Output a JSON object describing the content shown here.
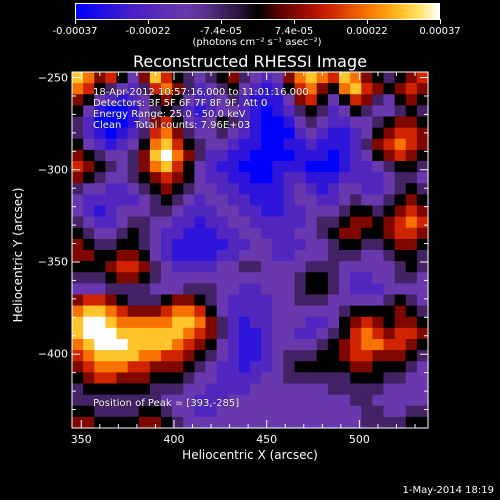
{
  "chart_data": {
    "type": "heatmap",
    "title": "Reconstructed RHESSI Image",
    "xlabel": "Heliocentric X (arcsec)",
    "ylabel": "Heliocentric Y (arcsec)",
    "xlim": [
      345,
      537
    ],
    "ylim": [
      -440,
      -247
    ],
    "x_ticks": [
      350,
      400,
      450,
      500
    ],
    "y_ticks": [
      -250,
      -300,
      -350,
      -400
    ],
    "colorbar": {
      "ticks": [
        "-0.00037",
        "-0.00022",
        "-7.4e-05",
        "7.4e-05",
        "0.00022",
        "0.00037"
      ],
      "unit": "(photons cm⁻² s⁻¹ asec⁻²)",
      "range": [
        -0.00037,
        0.00037
      ]
    },
    "grid": [
      [
        0.9,
        0.8,
        0.6,
        0.7,
        0.5,
        0.3,
        0.6,
        0.9,
        0.7,
        0.5,
        0.4,
        0.3,
        0.4,
        0.5,
        0.6,
        0.4,
        0.3,
        0.2,
        0.3,
        0.6,
        0.8,
        0.9,
        0.8,
        0.7,
        0.9,
        0.8,
        0.6,
        0.5,
        0.4,
        0.5,
        0.6,
        0.7
      ],
      [
        0.8,
        0.7,
        0.5,
        0.4,
        0.3,
        0.2,
        0.4,
        0.7,
        0.8,
        0.6,
        0.4,
        0.2,
        0.3,
        0.4,
        0.5,
        0.3,
        0.2,
        0.1,
        0.2,
        0.5,
        0.7,
        0.8,
        0.6,
        0.5,
        0.8,
        0.9,
        0.7,
        0.6,
        0.5,
        0.6,
        0.7,
        0.6
      ],
      [
        0.6,
        0.5,
        0.3,
        0.2,
        0.1,
        0.2,
        0.3,
        0.5,
        0.6,
        0.5,
        0.3,
        0.2,
        0.2,
        0.3,
        0.4,
        0.2,
        0.1,
        0.1,
        0.1,
        0.3,
        0.6,
        0.7,
        0.5,
        0.3,
        0.5,
        0.7,
        0.6,
        0.4,
        0.3,
        0.5,
        0.6,
        0.5
      ],
      [
        0.5,
        0.3,
        0.1,
        0.0,
        0.0,
        0.1,
        0.3,
        0.4,
        0.5,
        0.4,
        0.2,
        0.1,
        0.2,
        0.3,
        0.3,
        0.2,
        0.1,
        0.0,
        0.1,
        0.2,
        0.4,
        0.5,
        0.4,
        0.2,
        0.3,
        0.5,
        0.4,
        0.3,
        0.3,
        0.4,
        0.5,
        0.4
      ],
      [
        0.4,
        0.2,
        0.0,
        0.0,
        0.0,
        0.1,
        0.3,
        0.6,
        0.7,
        0.5,
        0.3,
        0.2,
        0.3,
        0.5,
        0.4,
        0.2,
        0.1,
        0.0,
        0.0,
        0.1,
        0.3,
        0.4,
        0.3,
        0.2,
        0.2,
        0.3,
        0.3,
        0.4,
        0.5,
        0.6,
        0.6,
        0.5
      ],
      [
        0.4,
        0.2,
        0.1,
        0.0,
        0.1,
        0.2,
        0.4,
        0.7,
        0.8,
        0.6,
        0.4,
        0.3,
        0.3,
        0.4,
        0.3,
        0.2,
        0.1,
        0.0,
        0.0,
        0.0,
        0.2,
        0.3,
        0.2,
        0.1,
        0.1,
        0.2,
        0.3,
        0.5,
        0.6,
        0.7,
        0.7,
        0.6
      ],
      [
        0.5,
        0.3,
        0.2,
        0.1,
        0.2,
        0.3,
        0.5,
        0.8,
        0.9,
        0.7,
        0.5,
        0.4,
        0.3,
        0.3,
        0.2,
        0.1,
        0.1,
        0.0,
        0.0,
        0.1,
        0.1,
        0.2,
        0.1,
        0.1,
        0.1,
        0.2,
        0.4,
        0.6,
        0.7,
        0.8,
        0.7,
        0.6
      ],
      [
        0.6,
        0.5,
        0.4,
        0.3,
        0.3,
        0.4,
        0.6,
        0.9,
        1.0,
        0.8,
        0.6,
        0.4,
        0.2,
        0.2,
        0.1,
        0.1,
        0.0,
        0.0,
        0.0,
        0.0,
        0.1,
        0.1,
        0.1,
        0.0,
        0.1,
        0.2,
        0.3,
        0.5,
        0.6,
        0.7,
        0.6,
        0.5
      ],
      [
        0.7,
        0.6,
        0.5,
        0.4,
        0.3,
        0.4,
        0.6,
        0.8,
        0.9,
        0.7,
        0.5,
        0.3,
        0.2,
        0.1,
        0.1,
        0.0,
        0.0,
        0.0,
        0.1,
        0.1,
        0.1,
        0.0,
        0.0,
        0.0,
        0.1,
        0.2,
        0.2,
        0.3,
        0.4,
        0.5,
        0.5,
        0.4
      ],
      [
        0.6,
        0.5,
        0.4,
        0.3,
        0.3,
        0.4,
        0.5,
        0.6,
        0.7,
        0.6,
        0.5,
        0.3,
        0.2,
        0.2,
        0.1,
        0.1,
        0.0,
        0.0,
        0.1,
        0.2,
        0.2,
        0.1,
        0.1,
        0.1,
        0.2,
        0.2,
        0.2,
        0.2,
        0.3,
        0.4,
        0.4,
        0.3
      ],
      [
        0.4,
        0.3,
        0.3,
        0.2,
        0.2,
        0.3,
        0.4,
        0.5,
        0.6,
        0.5,
        0.4,
        0.3,
        0.3,
        0.2,
        0.2,
        0.1,
        0.1,
        0.1,
        0.1,
        0.2,
        0.3,
        0.2,
        0.1,
        0.2,
        0.3,
        0.3,
        0.2,
        0.2,
        0.3,
        0.4,
        0.5,
        0.4
      ],
      [
        0.3,
        0.2,
        0.2,
        0.2,
        0.2,
        0.2,
        0.3,
        0.4,
        0.5,
        0.4,
        0.3,
        0.2,
        0.3,
        0.3,
        0.2,
        0.2,
        0.1,
        0.1,
        0.1,
        0.2,
        0.3,
        0.3,
        0.2,
        0.2,
        0.3,
        0.4,
        0.3,
        0.3,
        0.4,
        0.5,
        0.6,
        0.5
      ],
      [
        0.3,
        0.2,
        0.1,
        0.2,
        0.3,
        0.3,
        0.3,
        0.4,
        0.4,
        0.3,
        0.2,
        0.2,
        0.2,
        0.3,
        0.3,
        0.2,
        0.2,
        0.1,
        0.1,
        0.2,
        0.2,
        0.3,
        0.3,
        0.3,
        0.4,
        0.5,
        0.5,
        0.4,
        0.5,
        0.6,
        0.7,
        0.6
      ],
      [
        0.4,
        0.3,
        0.2,
        0.2,
        0.3,
        0.4,
        0.4,
        0.3,
        0.3,
        0.2,
        0.2,
        0.1,
        0.2,
        0.2,
        0.3,
        0.3,
        0.2,
        0.2,
        0.2,
        0.2,
        0.2,
        0.3,
        0.4,
        0.4,
        0.5,
        0.6,
        0.6,
        0.5,
        0.6,
        0.7,
        0.8,
        0.7
      ],
      [
        0.5,
        0.4,
        0.3,
        0.3,
        0.4,
        0.5,
        0.4,
        0.3,
        0.2,
        0.2,
        0.1,
        0.1,
        0.1,
        0.2,
        0.2,
        0.3,
        0.3,
        0.2,
        0.2,
        0.2,
        0.3,
        0.3,
        0.4,
        0.5,
        0.6,
        0.6,
        0.5,
        0.5,
        0.6,
        0.7,
        0.7,
        0.6
      ],
      [
        0.6,
        0.5,
        0.4,
        0.4,
        0.5,
        0.5,
        0.4,
        0.3,
        0.2,
        0.1,
        0.1,
        0.1,
        0.1,
        0.1,
        0.2,
        0.2,
        0.3,
        0.3,
        0.2,
        0.2,
        0.2,
        0.3,
        0.3,
        0.4,
        0.5,
        0.5,
        0.4,
        0.4,
        0.5,
        0.6,
        0.6,
        0.5
      ],
      [
        0.6,
        0.6,
        0.5,
        0.5,
        0.6,
        0.6,
        0.5,
        0.3,
        0.2,
        0.1,
        0.1,
        0.1,
        0.1,
        0.2,
        0.2,
        0.3,
        0.3,
        0.3,
        0.2,
        0.2,
        0.3,
        0.3,
        0.3,
        0.4,
        0.4,
        0.4,
        0.3,
        0.3,
        0.4,
        0.5,
        0.5,
        0.4
      ],
      [
        0.5,
        0.5,
        0.5,
        0.6,
        0.7,
        0.7,
        0.6,
        0.4,
        0.3,
        0.2,
        0.2,
        0.2,
        0.2,
        0.3,
        0.3,
        0.4,
        0.4,
        0.3,
        0.3,
        0.3,
        0.3,
        0.4,
        0.4,
        0.4,
        0.3,
        0.3,
        0.3,
        0.3,
        0.3,
        0.4,
        0.5,
        0.4
      ],
      [
        0.4,
        0.4,
        0.4,
        0.5,
        0.6,
        0.6,
        0.5,
        0.4,
        0.3,
        0.3,
        0.3,
        0.3,
        0.3,
        0.3,
        0.3,
        0.3,
        0.3,
        0.3,
        0.3,
        0.3,
        0.4,
        0.5,
        0.5,
        0.4,
        0.3,
        0.2,
        0.2,
        0.3,
        0.3,
        0.4,
        0.4,
        0.3
      ],
      [
        0.3,
        0.3,
        0.3,
        0.4,
        0.4,
        0.4,
        0.4,
        0.3,
        0.3,
        0.3,
        0.4,
        0.4,
        0.4,
        0.3,
        0.3,
        0.2,
        0.2,
        0.3,
        0.3,
        0.3,
        0.4,
        0.5,
        0.5,
        0.4,
        0.3,
        0.2,
        0.2,
        0.2,
        0.3,
        0.3,
        0.3,
        0.3
      ],
      [
        0.6,
        0.7,
        0.7,
        0.6,
        0.5,
        0.4,
        0.4,
        0.4,
        0.5,
        0.6,
        0.6,
        0.5,
        0.4,
        0.3,
        0.2,
        0.2,
        0.2,
        0.2,
        0.3,
        0.3,
        0.4,
        0.4,
        0.4,
        0.3,
        0.3,
        0.3,
        0.3,
        0.3,
        0.4,
        0.5,
        0.4,
        0.3
      ],
      [
        0.8,
        0.9,
        0.9,
        0.8,
        0.7,
        0.6,
        0.6,
        0.6,
        0.7,
        0.8,
        0.8,
        0.7,
        0.5,
        0.3,
        0.2,
        0.2,
        0.2,
        0.2,
        0.3,
        0.3,
        0.3,
        0.3,
        0.3,
        0.3,
        0.4,
        0.5,
        0.5,
        0.5,
        0.5,
        0.6,
        0.5,
        0.4
      ],
      [
        0.9,
        1.0,
        1.0,
        0.9,
        0.8,
        0.8,
        0.8,
        0.8,
        0.8,
        0.9,
        0.9,
        0.8,
        0.6,
        0.4,
        0.2,
        0.1,
        0.2,
        0.2,
        0.3,
        0.3,
        0.3,
        0.2,
        0.2,
        0.3,
        0.5,
        0.6,
        0.7,
        0.6,
        0.5,
        0.6,
        0.6,
        0.5
      ],
      [
        0.9,
        1.0,
        1.0,
        1.0,
        0.9,
        0.9,
        0.9,
        0.9,
        0.9,
        0.9,
        0.8,
        0.7,
        0.6,
        0.4,
        0.2,
        0.1,
        0.1,
        0.2,
        0.3,
        0.3,
        0.2,
        0.2,
        0.3,
        0.4,
        0.5,
        0.7,
        0.8,
        0.7,
        0.6,
        0.7,
        0.7,
        0.6
      ],
      [
        0.8,
        0.9,
        1.0,
        1.0,
        1.0,
        0.9,
        0.9,
        0.9,
        0.9,
        0.8,
        0.7,
        0.6,
        0.5,
        0.3,
        0.2,
        0.1,
        0.1,
        0.2,
        0.3,
        0.3,
        0.3,
        0.3,
        0.4,
        0.5,
        0.6,
        0.7,
        0.8,
        0.8,
        0.7,
        0.7,
        0.6,
        0.5
      ],
      [
        0.7,
        0.8,
        0.9,
        0.9,
        0.9,
        0.9,
        0.8,
        0.8,
        0.7,
        0.7,
        0.6,
        0.5,
        0.4,
        0.3,
        0.2,
        0.1,
        0.1,
        0.2,
        0.3,
        0.4,
        0.4,
        0.4,
        0.5,
        0.5,
        0.6,
        0.7,
        0.7,
        0.6,
        0.6,
        0.6,
        0.5,
        0.4
      ],
      [
        0.6,
        0.7,
        0.8,
        0.8,
        0.8,
        0.7,
        0.7,
        0.6,
        0.6,
        0.6,
        0.5,
        0.4,
        0.3,
        0.2,
        0.2,
        0.1,
        0.2,
        0.2,
        0.3,
        0.4,
        0.5,
        0.5,
        0.5,
        0.5,
        0.5,
        0.6,
        0.6,
        0.5,
        0.5,
        0.5,
        0.4,
        0.3
      ],
      [
        0.5,
        0.6,
        0.7,
        0.7,
        0.6,
        0.6,
        0.6,
        0.5,
        0.5,
        0.5,
        0.4,
        0.3,
        0.3,
        0.2,
        0.2,
        0.2,
        0.2,
        0.3,
        0.3,
        0.4,
        0.4,
        0.4,
        0.4,
        0.4,
        0.4,
        0.5,
        0.5,
        0.5,
        0.4,
        0.4,
        0.3,
        0.3
      ],
      [
        0.4,
        0.5,
        0.5,
        0.5,
        0.5,
        0.5,
        0.5,
        0.4,
        0.4,
        0.4,
        0.3,
        0.3,
        0.2,
        0.2,
        0.2,
        0.2,
        0.3,
        0.3,
        0.3,
        0.3,
        0.3,
        0.3,
        0.3,
        0.4,
        0.4,
        0.4,
        0.4,
        0.4,
        0.3,
        0.3,
        0.3,
        0.3
      ],
      [
        0.4,
        0.4,
        0.4,
        0.4,
        0.4,
        0.4,
        0.4,
        0.4,
        0.3,
        0.3,
        0.3,
        0.2,
        0.2,
        0.2,
        0.3,
        0.3,
        0.3,
        0.3,
        0.3,
        0.3,
        0.3,
        0.3,
        0.3,
        0.3,
        0.3,
        0.4,
        0.4,
        0.3,
        0.3,
        0.3,
        0.3,
        0.3
      ],
      [
        0.5,
        0.5,
        0.4,
        0.4,
        0.4,
        0.4,
        0.5,
        0.5,
        0.4,
        0.3,
        0.3,
        0.2,
        0.2,
        0.3,
        0.3,
        0.3,
        0.3,
        0.3,
        0.3,
        0.3,
        0.3,
        0.3,
        0.3,
        0.3,
        0.3,
        0.3,
        0.4,
        0.4,
        0.3,
        0.3,
        0.4,
        0.4
      ],
      [
        0.6,
        0.6,
        0.5,
        0.5,
        0.5,
        0.5,
        0.6,
        0.6,
        0.5,
        0.4,
        0.3,
        0.3,
        0.3,
        0.3,
        0.3,
        0.3,
        0.3,
        0.3,
        0.3,
        0.3,
        0.3,
        0.3,
        0.3,
        0.3,
        0.3,
        0.3,
        0.4,
        0.4,
        0.4,
        0.4,
        0.5,
        0.5
      ]
    ]
  },
  "annotations": {
    "line1": "18-Apr-2012 10:57:16.000 to 11:01:16.000",
    "line2": "Detectors: 3F 5F 6F 7F 8F 9F, Att 0",
    "line3": "Energy Range: 25.0 - 50.0 keV",
    "line4": "Clean    Total counts: 7.96E+03",
    "peak": "Position of Peak = [393,-285]"
  },
  "footer": {
    "date": "1-May-2014 18:19"
  },
  "colors": {
    "background": "#000000",
    "axis": "#ffffff"
  }
}
